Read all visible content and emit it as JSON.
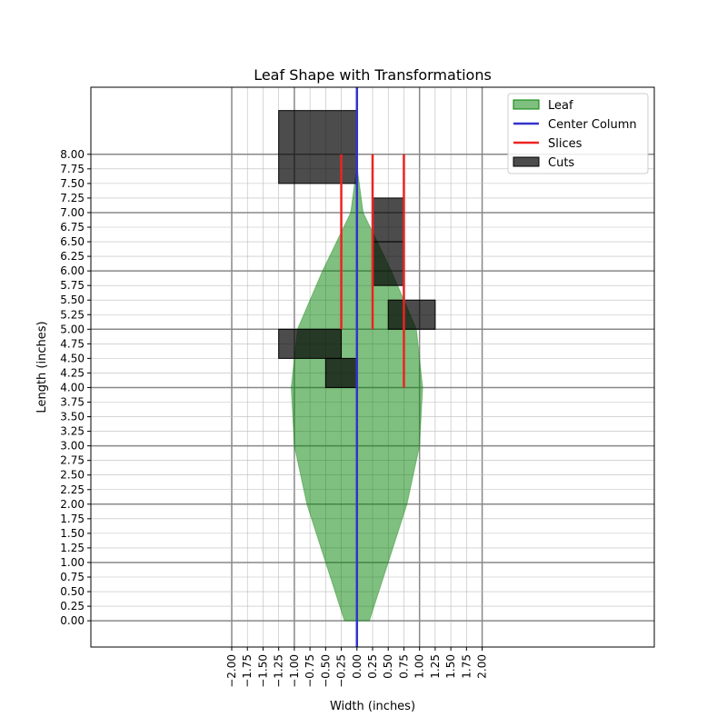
{
  "chart_data": {
    "type": "area",
    "title": "Leaf Shape with Transformations",
    "xlabel": "Width (inches)",
    "ylabel": "Length (inches)",
    "xlim": [
      -4.25,
      4.75
    ],
    "ylim": [
      -0.45,
      9.15
    ],
    "xticks": [
      -2.0,
      -1.75,
      -1.5,
      -1.25,
      -1.0,
      -0.75,
      -0.5,
      -0.25,
      0.0,
      0.25,
      0.5,
      0.75,
      1.0,
      1.25,
      1.5,
      1.75,
      2.0
    ],
    "yticks": [
      0.0,
      0.25,
      0.5,
      0.75,
      1.0,
      1.25,
      1.5,
      1.75,
      2.0,
      2.25,
      2.5,
      2.75,
      3.0,
      3.25,
      3.5,
      3.75,
      4.0,
      4.25,
      4.5,
      4.75,
      5.0,
      5.25,
      5.5,
      5.75,
      6.0,
      6.25,
      6.5,
      6.75,
      7.0,
      7.25,
      7.5,
      7.75,
      8.0
    ],
    "xtick_labels": [
      "−2.00",
      "−1.75",
      "−1.50",
      "−1.25",
      "−1.00",
      "−0.75",
      "−0.50",
      "−0.25",
      "0.00",
      "0.25",
      "0.50",
      "0.75",
      "1.00",
      "1.25",
      "1.50",
      "1.75",
      "2.00"
    ],
    "ytick_labels": [
      "0.00",
      "0.25",
      "0.50",
      "0.75",
      "1.00",
      "1.25",
      "1.50",
      "1.75",
      "2.00",
      "2.25",
      "2.50",
      "2.75",
      "3.00",
      "3.25",
      "3.50",
      "3.75",
      "4.00",
      "4.25",
      "4.50",
      "4.75",
      "5.00",
      "5.25",
      "5.50",
      "5.75",
      "6.00",
      "6.25",
      "6.50",
      "6.75",
      "7.00",
      "7.25",
      "7.50",
      "7.75",
      "8.00"
    ],
    "grid": true,
    "legend_placement": "top-right",
    "leaf": {
      "name": "Leaf",
      "color": "#008000",
      "opacity": 0.5,
      "outline": [
        [
          -0.2,
          0.0
        ],
        [
          -0.5,
          1.0
        ],
        [
          -0.8,
          2.0
        ],
        [
          -1.0,
          3.0
        ],
        [
          -1.05,
          4.0
        ],
        [
          -0.95,
          5.0
        ],
        [
          -0.55,
          6.0
        ],
        [
          -0.1,
          7.0
        ],
        [
          0.0,
          7.8
        ],
        [
          0.1,
          7.0
        ],
        [
          0.55,
          6.0
        ],
        [
          0.95,
          5.0
        ],
        [
          1.05,
          4.0
        ],
        [
          1.0,
          3.0
        ],
        [
          0.8,
          2.0
        ],
        [
          0.5,
          1.0
        ],
        [
          0.2,
          0.0
        ]
      ]
    },
    "center_column": {
      "name": "Center Column",
      "color": "#3333cc",
      "x": 0.0,
      "y_range": [
        -0.45,
        9.15
      ]
    },
    "slices": {
      "name": "Slices",
      "color": "#ee2222",
      "segments": [
        {
          "x": -0.25,
          "y0": 5.0,
          "y1": 8.0
        },
        {
          "x": 0.25,
          "y0": 5.0,
          "y1": 8.0
        },
        {
          "x": 0.75,
          "y0": 4.0,
          "y1": 8.0
        }
      ]
    },
    "cuts": {
      "name": "Cuts",
      "color": "#000000",
      "opacity": 0.7,
      "rects": [
        {
          "x0": -1.25,
          "x1": 0.0,
          "y0": 7.5,
          "y1": 8.75
        },
        {
          "x0": 0.25,
          "x1": 0.75,
          "y0": 6.5,
          "y1": 7.25
        },
        {
          "x0": 0.25,
          "x1": 0.75,
          "y0": 5.75,
          "y1": 6.5
        },
        {
          "x0": 0.5,
          "x1": 1.25,
          "y0": 5.0,
          "y1": 5.5
        },
        {
          "x0": -1.25,
          "x1": -0.25,
          "y0": 4.5,
          "y1": 5.0
        },
        {
          "x0": -0.5,
          "x1": 0.0,
          "y0": 4.0,
          "y1": 4.5
        }
      ]
    }
  }
}
